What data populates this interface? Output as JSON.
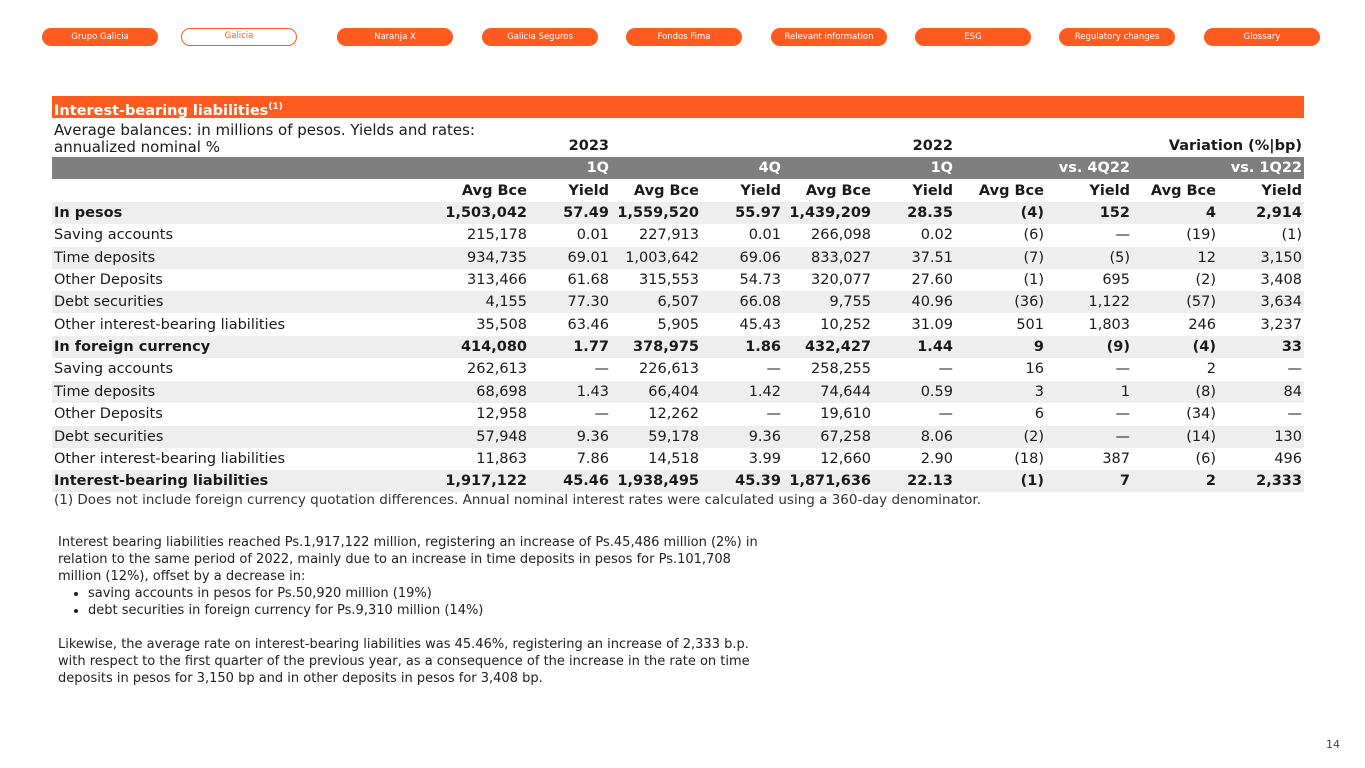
{
  "nav": {
    "tabs": [
      "Grupo Galicia",
      "Galicia",
      "Naranja X",
      "Galicia Seguros",
      "Fondos Fima",
      "Relevant information",
      "ESG",
      "Regulatory changes",
      "Glossary"
    ],
    "active": 1
  },
  "table": {
    "title": "Interest-bearing liabilities",
    "title_note": "(1)",
    "subtitle": "Average balances: in millions of pesos. Yields and rates: annualized nominal %",
    "years": [
      "2023",
      "2022",
      "Variation (%|bp)"
    ],
    "periods": [
      "1Q",
      "4Q",
      "1Q",
      "vs. 4Q22",
      "vs. 1Q22"
    ],
    "columns": [
      "Avg Bce",
      "Yield",
      "Avg Bce",
      "Yield",
      "Avg Bce",
      "Yield",
      "Avg Bce",
      "Yield",
      "Avg Bce",
      "Yield"
    ],
    "rows": [
      {
        "label": "In pesos",
        "bold": true,
        "cells": [
          "1,503,042",
          "57.49",
          "1,559,520",
          "55.97",
          "1,439,209",
          "28.35",
          "(4)",
          "152",
          "4",
          "2,914"
        ]
      },
      {
        "label": "Saving accounts",
        "bold": false,
        "cells": [
          "215,178",
          "0.01",
          "227,913",
          "0.01",
          "266,098",
          "0.02",
          "(6)",
          "—",
          "(19)",
          "(1)"
        ]
      },
      {
        "label": "Time deposits",
        "bold": false,
        "cells": [
          "934,735",
          "69.01",
          "1,003,642",
          "69.06",
          "833,027",
          "37.51",
          "(7)",
          "(5)",
          "12",
          "3,150"
        ]
      },
      {
        "label": "Other Deposits",
        "bold": false,
        "cells": [
          "313,466",
          "61.68",
          "315,553",
          "54.73",
          "320,077",
          "27.60",
          "(1)",
          "695",
          "(2)",
          "3,408"
        ]
      },
      {
        "label": "Debt securities",
        "bold": false,
        "cells": [
          "4,155",
          "77.30",
          "6,507",
          "66.08",
          "9,755",
          "40.96",
          "(36)",
          "1,122",
          "(57)",
          "3,634"
        ]
      },
      {
        "label": "Other interest-bearing liabilities",
        "bold": false,
        "cells": [
          "35,508",
          "63.46",
          "5,905",
          "45.43",
          "10,252",
          "31.09",
          "501",
          "1,803",
          "246",
          "3,237"
        ]
      },
      {
        "label": "In foreign currency",
        "bold": true,
        "cells": [
          "414,080",
          "1.77",
          "378,975",
          "1.86",
          "432,427",
          "1.44",
          "9",
          "(9)",
          "(4)",
          "33"
        ]
      },
      {
        "label": "Saving accounts",
        "bold": false,
        "cells": [
          "262,613",
          "—",
          "226,613",
          "—",
          "258,255",
          "—",
          "16",
          "—",
          "2",
          "—"
        ]
      },
      {
        "label": "Time deposits",
        "bold": false,
        "cells": [
          "68,698",
          "1.43",
          "66,404",
          "1.42",
          "74,644",
          "0.59",
          "3",
          "1",
          "(8)",
          "84"
        ]
      },
      {
        "label": "Other Deposits",
        "bold": false,
        "cells": [
          "12,958",
          "—",
          "12,262",
          "—",
          "19,610",
          "—",
          "6",
          "—",
          "(34)",
          "—"
        ]
      },
      {
        "label": "Debt securities",
        "bold": false,
        "cells": [
          "57,948",
          "9.36",
          "59,178",
          "9.36",
          "67,258",
          "8.06",
          "(2)",
          "—",
          "(14)",
          "130"
        ]
      },
      {
        "label": "Other interest-bearing liabilities",
        "bold": false,
        "cells": [
          "11,863",
          "7.86",
          "14,518",
          "3.99",
          "12,660",
          "2.90",
          "(18)",
          "387",
          "(6)",
          "496"
        ]
      },
      {
        "label": "Interest-bearing liabilities",
        "bold": true,
        "cells": [
          "1,917,122",
          "45.46",
          "1,938,495",
          "45.39",
          "1,871,636",
          "22.13",
          "(1)",
          "7",
          "2",
          "2,333"
        ]
      }
    ],
    "footnote": "(1) Does not include foreign currency quotation differences. Annual nominal interest rates were calculated using a 360-day denominator."
  },
  "body": {
    "paragraph_1": "Interest bearing liabilities reached Ps.1,917,122 million, registering an increase of Ps.45,486 million (2%) in relation to the same period of 2022, mainly due to an increase in time deposits in pesos for Ps.101,708 million (12%), offset by a decrease in:",
    "bullets": [
      "saving accounts in pesos for Ps.50,920 million (19%)",
      "debt securities in foreign currency for Ps.9,310 million (14%)"
    ],
    "paragraph_2": "Likewise, the average rate on interest-bearing liabilities was 45.46%, registering an increase of 2,333 b.p. with respect to the first quarter of the previous year, as a consequence of the increase in the rate on time deposits in pesos for 3,150 bp and in other deposits in pesos for 3,408 bp."
  },
  "page_number": "14"
}
